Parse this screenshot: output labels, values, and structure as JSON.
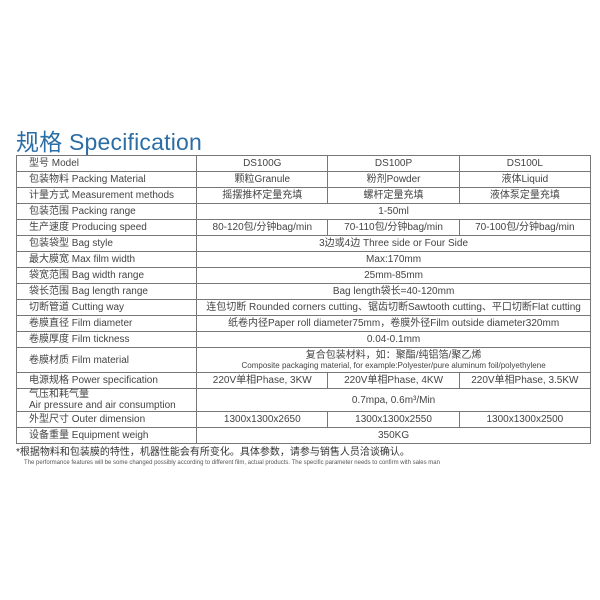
{
  "title": "规格 Specification",
  "header": {
    "label": "型号 Model",
    "cols": [
      "DS100G",
      "DS100P",
      "DS100L"
    ]
  },
  "rows": [
    {
      "label": "包装物料 Packing Material",
      "vals": [
        "颗粒Granule",
        "粉剂Powder",
        "液体Liquid"
      ]
    },
    {
      "label": "计量方式 Measurement methods",
      "vals": [
        "摇摆推杯定量充填",
        "螺杆定量充填",
        "液体泵定量充填"
      ]
    },
    {
      "label": "包装范围 Packing range",
      "vals": [
        "1-50ml"
      ]
    },
    {
      "label": "生产速度 Producing speed",
      "vals": [
        "80-120包/分钟bag/min",
        "70-110包/分钟bag/min",
        "70-100包/分钟bag/min"
      ]
    },
    {
      "label": "包装袋型 Bag style",
      "vals": [
        "3边或4边 Three side or Four Side"
      ]
    },
    {
      "label": "最大膜宽 Max film width",
      "vals": [
        "Max:170mm"
      ]
    },
    {
      "label": "袋宽范围 Bag width range",
      "vals": [
        "25mm-85mm"
      ]
    },
    {
      "label": "袋长范围 Bag length range",
      "vals": [
        "Bag length袋长=40-120mm"
      ]
    },
    {
      "label": "切断管道 Cutting way",
      "vals": [
        "连包切断 Rounded corners cutting、锯齿切断Sawtooth cutting、平口切断Flat cutting"
      ]
    },
    {
      "label": "卷膜直径 Film diameter",
      "vals": [
        "纸卷内径Paper roll diameter75mm，卷膜外径Film outside diameter320mm"
      ]
    },
    {
      "label": "卷膜厚度 Film tickness",
      "vals": [
        "0.04-0.1mm"
      ]
    }
  ],
  "material": {
    "label": "卷膜材质 Film material",
    "line1": "复合包装材料，如：聚酯/纯铝箔/聚乙烯",
    "line2": "Composite packaging material, for example:Polyester/pure aluminum foil/polyethylene"
  },
  "rows2": [
    {
      "label": "电源规格 Power specification",
      "vals": [
        "220V单相Phase, 3KW",
        "220V单相Phase, 4KW",
        "220V单相Phase, 3.5KW"
      ]
    }
  ],
  "air": {
    "label1": "气压和耗气量",
    "label2": "Air pressure and air consumption",
    "val": "0.7mpa, 0.6m³/Min"
  },
  "rows3": [
    {
      "label": "外型尺寸 Outer dimension",
      "vals": [
        "1300x1300x2650",
        "1300x1300x2550",
        "1300x1300x2500"
      ]
    },
    {
      "label": "设备重量 Equipment weigh",
      "vals": [
        "350KG"
      ]
    }
  ],
  "notes": {
    "cn": "*根据物料和包装膜的特性，机器性能会有所变化。具体参数，请参与销售人员洽谈确认。",
    "en": "The performance features will be some changed possibly according to different film, actual products. The specific parameter needs to confirm with sales man"
  }
}
